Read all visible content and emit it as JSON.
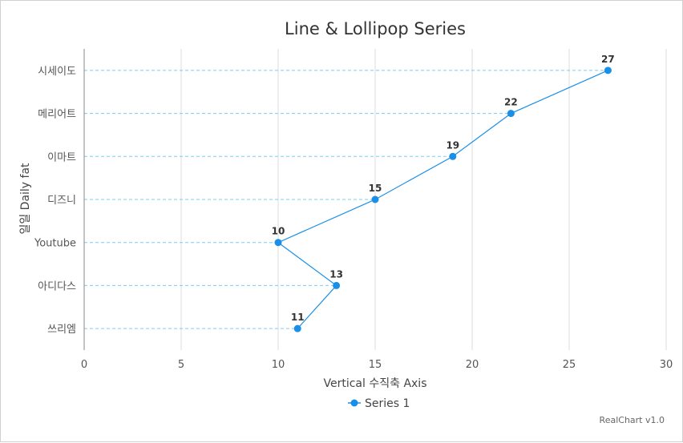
{
  "chart_data": {
    "type": "line",
    "title": "Line & Lollipop Series",
    "xlabel": "Vertical 수직축 Axis",
    "ylabel": "일일 Daily fat",
    "orientation": "horizontal",
    "categories": [
      "시세이도",
      "메리어트",
      "이마트",
      "디즈니",
      "Youtube",
      "아디다스",
      "쓰리엠"
    ],
    "series": [
      {
        "name": "Series 1",
        "values": [
          27,
          22,
          19,
          15,
          10,
          13,
          11
        ],
        "color": "#1a8fe8"
      }
    ],
    "value_axis": {
      "min": 0,
      "max": 30,
      "ticks": [
        0,
        5,
        10,
        15,
        20,
        25,
        30
      ]
    },
    "grid": true,
    "legend": "bottom",
    "credit": "RealChart v1.0"
  }
}
